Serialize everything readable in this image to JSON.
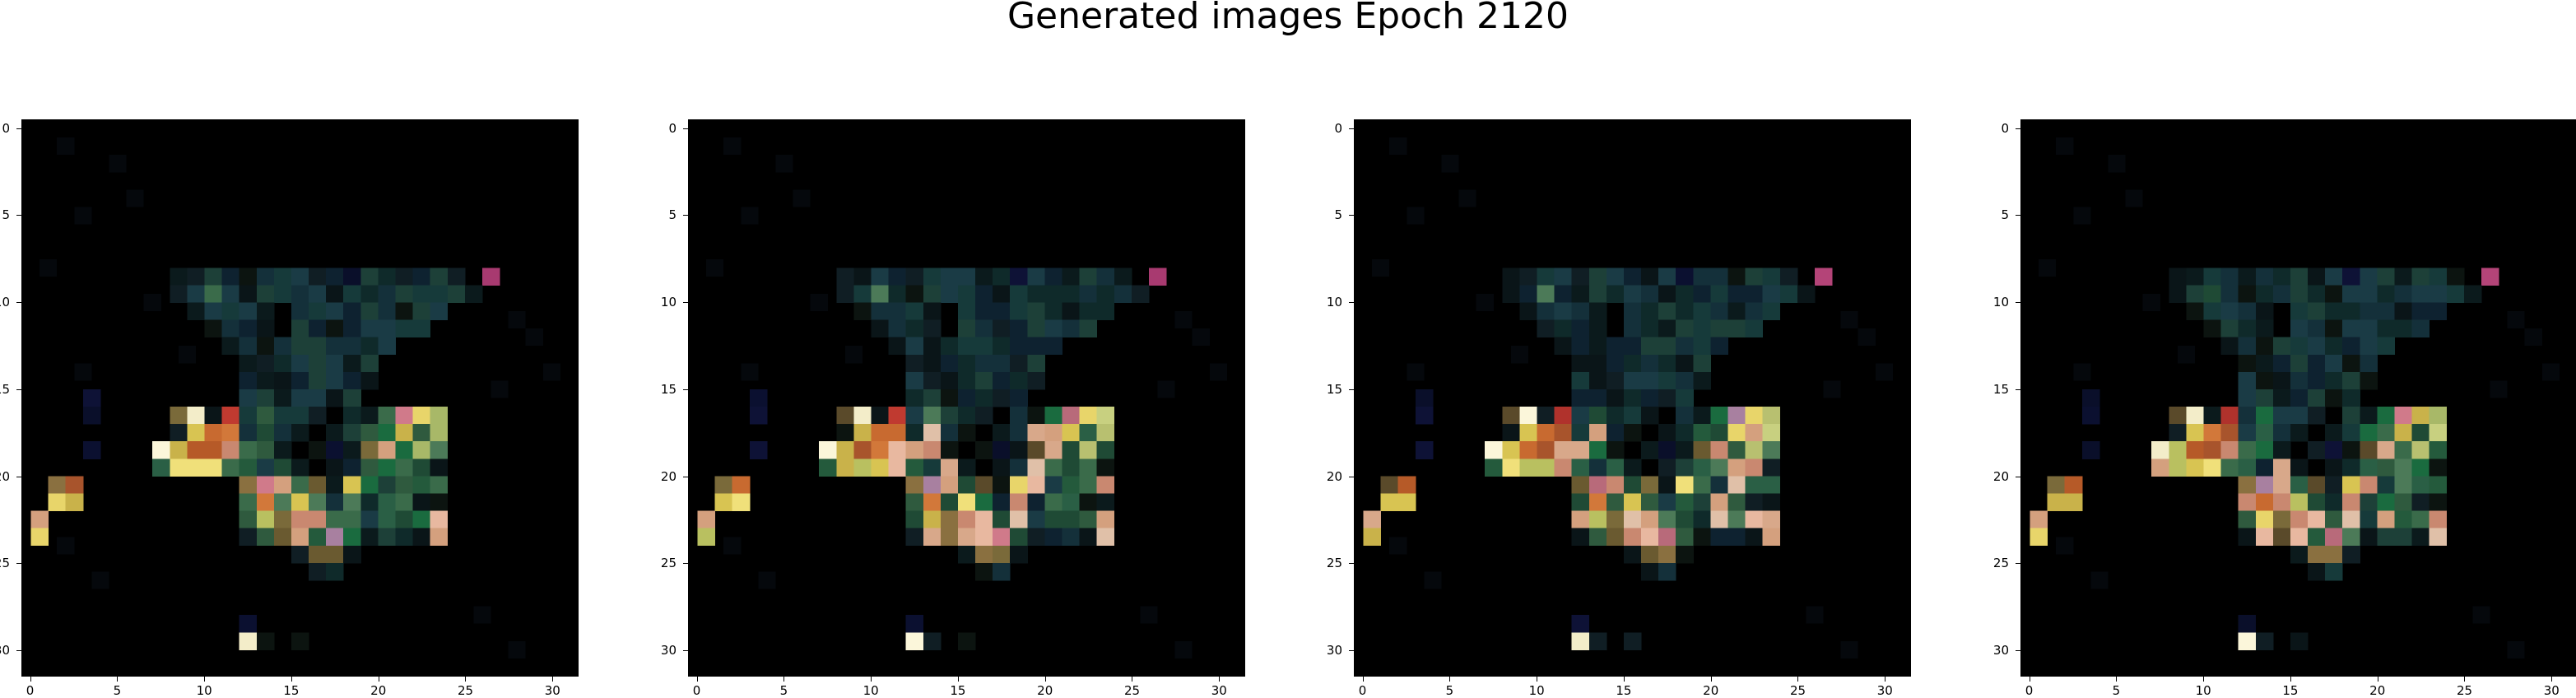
{
  "figure": {
    "title": "Generated images Epoch 2120",
    "x_ticks": [
      "0",
      "5",
      "10",
      "15",
      "20",
      "25",
      "30"
    ],
    "y_ticks": [
      "0",
      "5",
      "10",
      "15",
      "20",
      "25",
      "30"
    ],
    "image_size": 32,
    "panel_count": 4,
    "background_color": "#000000"
  }
}
